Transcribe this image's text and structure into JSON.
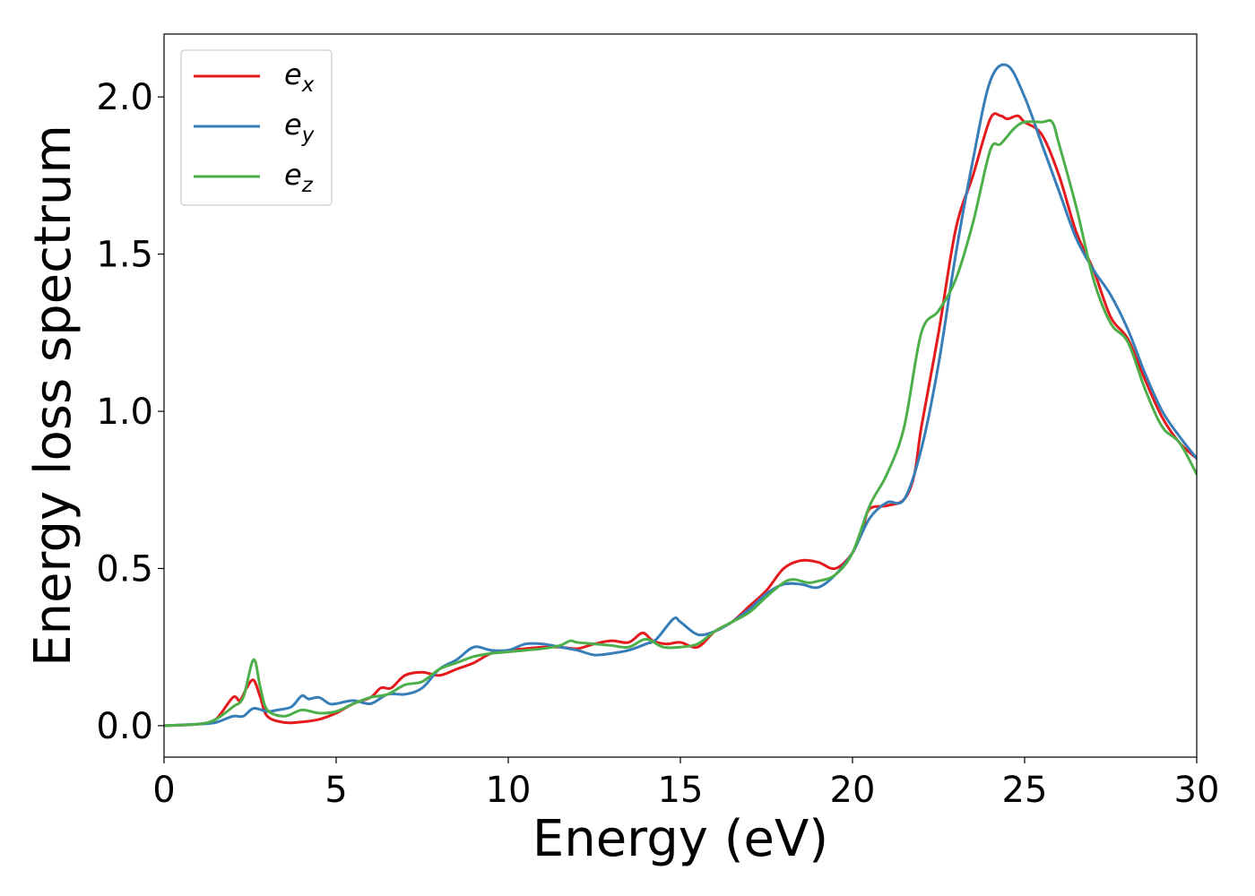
{
  "chart_data": {
    "type": "line",
    "title": "",
    "xlabel": "Energy (eV)",
    "ylabel": "Energy loss spectrum",
    "xlim": [
      0,
      30
    ],
    "ylim": [
      -0.1,
      2.2
    ],
    "xticks": [
      0,
      5,
      10,
      15,
      20,
      25,
      30
    ],
    "xtick_labels": [
      "0",
      "5",
      "10",
      "15",
      "20",
      "25",
      "30"
    ],
    "yticks": [
      0.0,
      0.5,
      1.0,
      1.5,
      2.0
    ],
    "ytick_labels": [
      "0.0",
      "0.5",
      "1.0",
      "1.5",
      "2.0"
    ],
    "grid": false,
    "legend_position": "top-left",
    "series": [
      {
        "name": "e_x",
        "label_base": "e",
        "label_sub": "x",
        "color": "#e41a1c",
        "points": [
          [
            0,
            0
          ],
          [
            1,
            0.005
          ],
          [
            1.5,
            0.02
          ],
          [
            2,
            0.09
          ],
          [
            2.2,
            0.08
          ],
          [
            2.4,
            0.12
          ],
          [
            2.6,
            0.145
          ],
          [
            2.8,
            0.09
          ],
          [
            3,
            0.03
          ],
          [
            3.5,
            0.01
          ],
          [
            4,
            0.012
          ],
          [
            4.5,
            0.02
          ],
          [
            5,
            0.04
          ],
          [
            5.5,
            0.07
          ],
          [
            6,
            0.09
          ],
          [
            6.3,
            0.12
          ],
          [
            6.6,
            0.12
          ],
          [
            7,
            0.16
          ],
          [
            7.5,
            0.17
          ],
          [
            8,
            0.16
          ],
          [
            8.5,
            0.18
          ],
          [
            9,
            0.2
          ],
          [
            9.5,
            0.23
          ],
          [
            10,
            0.24
          ],
          [
            10.5,
            0.245
          ],
          [
            11,
            0.25
          ],
          [
            11.5,
            0.25
          ],
          [
            12,
            0.245
          ],
          [
            12.5,
            0.26
          ],
          [
            13,
            0.27
          ],
          [
            13.5,
            0.265
          ],
          [
            13.9,
            0.295
          ],
          [
            14.2,
            0.27
          ],
          [
            14.6,
            0.26
          ],
          [
            15,
            0.265
          ],
          [
            15.5,
            0.25
          ],
          [
            16,
            0.3
          ],
          [
            16.5,
            0.33
          ],
          [
            17,
            0.38
          ],
          [
            17.5,
            0.43
          ],
          [
            18,
            0.5
          ],
          [
            18.5,
            0.525
          ],
          [
            19,
            0.52
          ],
          [
            19.5,
            0.5
          ],
          [
            20,
            0.55
          ],
          [
            20.3,
            0.63
          ],
          [
            20.5,
            0.69
          ],
          [
            21,
            0.7
          ],
          [
            21.5,
            0.72
          ],
          [
            21.8,
            0.8
          ],
          [
            22,
            0.95
          ],
          [
            22.5,
            1.25
          ],
          [
            23,
            1.58
          ],
          [
            23.5,
            1.75
          ],
          [
            24,
            1.93
          ],
          [
            24.3,
            1.94
          ],
          [
            24.5,
            1.93
          ],
          [
            24.8,
            1.94
          ],
          [
            25,
            1.92
          ],
          [
            25.5,
            1.88
          ],
          [
            26,
            1.75
          ],
          [
            26.5,
            1.57
          ],
          [
            27,
            1.45
          ],
          [
            27.5,
            1.3
          ],
          [
            28,
            1.23
          ],
          [
            28.5,
            1.1
          ],
          [
            29,
            0.98
          ],
          [
            29.5,
            0.9
          ],
          [
            30,
            0.85
          ]
        ]
      },
      {
        "name": "e_y",
        "label_base": "e",
        "label_sub": "y",
        "color": "#377eb8",
        "points": [
          [
            0,
            0
          ],
          [
            1,
            0.005
          ],
          [
            1.5,
            0.01
          ],
          [
            2,
            0.03
          ],
          [
            2.3,
            0.03
          ],
          [
            2.6,
            0.055
          ],
          [
            3,
            0.045
          ],
          [
            3.3,
            0.05
          ],
          [
            3.7,
            0.06
          ],
          [
            4,
            0.095
          ],
          [
            4.2,
            0.085
          ],
          [
            4.5,
            0.09
          ],
          [
            4.8,
            0.07
          ],
          [
            5,
            0.07
          ],
          [
            5.5,
            0.08
          ],
          [
            6,
            0.07
          ],
          [
            6.5,
            0.1
          ],
          [
            7,
            0.1
          ],
          [
            7.5,
            0.12
          ],
          [
            8,
            0.18
          ],
          [
            8.5,
            0.21
          ],
          [
            9,
            0.25
          ],
          [
            9.5,
            0.24
          ],
          [
            10,
            0.24
          ],
          [
            10.5,
            0.26
          ],
          [
            11,
            0.26
          ],
          [
            11.5,
            0.25
          ],
          [
            12,
            0.24
          ],
          [
            12.5,
            0.225
          ],
          [
            13,
            0.23
          ],
          [
            13.5,
            0.24
          ],
          [
            14,
            0.26
          ],
          [
            14.3,
            0.275
          ],
          [
            14.8,
            0.34
          ],
          [
            15,
            0.33
          ],
          [
            15.5,
            0.29
          ],
          [
            16,
            0.3
          ],
          [
            16.5,
            0.33
          ],
          [
            17,
            0.37
          ],
          [
            17.5,
            0.42
          ],
          [
            18,
            0.45
          ],
          [
            18.5,
            0.45
          ],
          [
            19,
            0.44
          ],
          [
            19.5,
            0.48
          ],
          [
            20,
            0.55
          ],
          [
            20.5,
            0.66
          ],
          [
            21,
            0.71
          ],
          [
            21.5,
            0.72
          ],
          [
            22,
            0.88
          ],
          [
            22.5,
            1.15
          ],
          [
            23,
            1.5
          ],
          [
            23.5,
            1.8
          ],
          [
            24,
            2.05
          ],
          [
            24.5,
            2.1
          ],
          [
            25,
            2.0
          ],
          [
            25.5,
            1.85
          ],
          [
            26,
            1.7
          ],
          [
            26.5,
            1.55
          ],
          [
            27,
            1.45
          ],
          [
            27.5,
            1.37
          ],
          [
            28,
            1.26
          ],
          [
            28.5,
            1.12
          ],
          [
            29,
            1.0
          ],
          [
            29.5,
            0.92
          ],
          [
            30,
            0.85
          ]
        ]
      },
      {
        "name": "e_z",
        "label_base": "e",
        "label_sub": "z",
        "color": "#4daf4a",
        "points": [
          [
            0,
            0
          ],
          [
            1,
            0.005
          ],
          [
            1.5,
            0.02
          ],
          [
            2,
            0.06
          ],
          [
            2.3,
            0.09
          ],
          [
            2.6,
            0.21
          ],
          [
            2.8,
            0.12
          ],
          [
            3,
            0.05
          ],
          [
            3.5,
            0.03
          ],
          [
            4,
            0.05
          ],
          [
            4.5,
            0.04
          ],
          [
            5,
            0.045
          ],
          [
            5.5,
            0.07
          ],
          [
            6,
            0.09
          ],
          [
            6.5,
            0.1
          ],
          [
            7,
            0.13
          ],
          [
            7.5,
            0.14
          ],
          [
            8,
            0.18
          ],
          [
            8.5,
            0.2
          ],
          [
            9,
            0.22
          ],
          [
            9.5,
            0.23
          ],
          [
            10,
            0.235
          ],
          [
            10.5,
            0.24
          ],
          [
            11,
            0.245
          ],
          [
            11.5,
            0.255
          ],
          [
            11.8,
            0.27
          ],
          [
            12,
            0.265
          ],
          [
            12.5,
            0.26
          ],
          [
            13,
            0.255
          ],
          [
            13.5,
            0.25
          ],
          [
            14,
            0.275
          ],
          [
            14.5,
            0.25
          ],
          [
            15,
            0.25
          ],
          [
            15.5,
            0.26
          ],
          [
            16,
            0.3
          ],
          [
            16.5,
            0.33
          ],
          [
            17,
            0.36
          ],
          [
            17.5,
            0.41
          ],
          [
            18,
            0.455
          ],
          [
            18.3,
            0.465
          ],
          [
            18.7,
            0.455
          ],
          [
            19,
            0.46
          ],
          [
            19.5,
            0.48
          ],
          [
            20,
            0.55
          ],
          [
            20.5,
            0.7
          ],
          [
            21,
            0.8
          ],
          [
            21.5,
            0.95
          ],
          [
            22,
            1.25
          ],
          [
            22.5,
            1.32
          ],
          [
            23,
            1.42
          ],
          [
            23.5,
            1.6
          ],
          [
            24,
            1.83
          ],
          [
            24.3,
            1.85
          ],
          [
            24.7,
            1.9
          ],
          [
            25,
            1.92
          ],
          [
            25.5,
            1.92
          ],
          [
            25.8,
            1.92
          ],
          [
            26,
            1.85
          ],
          [
            26.5,
            1.65
          ],
          [
            27,
            1.42
          ],
          [
            27.5,
            1.28
          ],
          [
            28,
            1.22
          ],
          [
            28.5,
            1.07
          ],
          [
            29,
            0.95
          ],
          [
            29.5,
            0.9
          ],
          [
            30,
            0.8
          ]
        ]
      }
    ]
  }
}
